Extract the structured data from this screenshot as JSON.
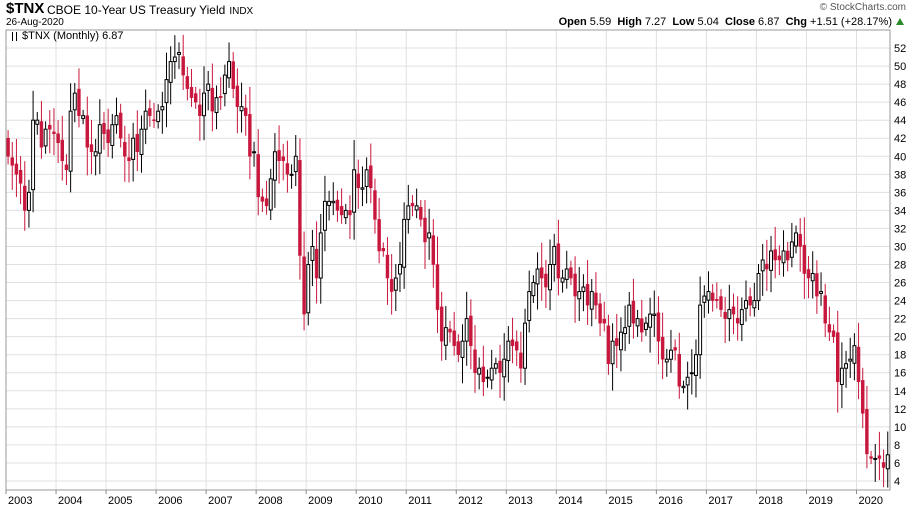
{
  "header": {
    "symbol": "$TNX",
    "name": "CBOE 10-Year US Treasury Yield",
    "exchange": "INDX",
    "date": "26-Aug-2020",
    "brand": "© StockCharts.com",
    "open_label": "Open",
    "open": "5.59",
    "high_label": "High",
    "high": "7.27",
    "low_label": "Low",
    "low": "5.04",
    "close_label": "Close",
    "close": "6.87",
    "chg_label": "Chg",
    "chg": "+1.51 (+28.17%)"
  },
  "legend": {
    "label": "$TNX (Monthly) 6.87"
  },
  "colors": {
    "up": "#000000",
    "down": "#c8173c",
    "grid": "#e0e0e0"
  },
  "chart_data": {
    "type": "candlestick",
    "ylim": [
      3,
      54
    ],
    "yticks": [
      4,
      6,
      8,
      10,
      12,
      14,
      16,
      18,
      20,
      22,
      24,
      26,
      28,
      30,
      32,
      34,
      36,
      38,
      40,
      42,
      44,
      46,
      48,
      50,
      52
    ],
    "x_start": 2003,
    "x_end": 2020.67,
    "xticks": [
      "2003",
      "2004",
      "2005",
      "2006",
      "2007",
      "2008",
      "2009",
      "2010",
      "2011",
      "2012",
      "2013",
      "2014",
      "2015",
      "2016",
      "2017",
      "2018",
      "2019",
      "2020"
    ],
    "grid": true,
    "monthly_close": [
      40.0,
      39.0,
      38.0,
      37.0,
      34.0,
      36.0,
      44.0,
      44.0,
      41.0,
      43.0,
      43.0,
      42.5,
      41.5,
      39.5,
      38.5,
      45.0,
      47.0,
      44.5,
      44.5,
      41.0,
      40.5,
      40.5,
      43.5,
      42.5,
      41.5,
      43.5,
      44.5,
      42.0,
      40.0,
      39.5,
      42.0,
      40.5,
      43.0,
      45.0,
      44.5,
      44.0,
      45.0,
      45.5,
      48.5,
      50.5,
      51.0,
      51.5,
      49.0,
      47.5,
      46.5,
      46.0,
      44.5,
      47.0,
      48.0,
      45.0,
      46.5,
      46.5,
      49.0,
      50.5,
      47.5,
      45.5,
      45.5,
      44.5,
      40.0,
      40.5,
      35.5,
      35.0,
      34.5,
      37.5,
      40.5,
      39.5,
      39.5,
      38.0,
      38.0,
      40.0,
      29.0,
      22.5,
      28.0,
      30.0,
      26.5,
      31.5,
      35.0,
      35.0,
      35.0,
      34.0,
      33.5,
      34.0,
      33.5,
      38.5,
      36.5,
      36.5,
      38.5,
      36.5,
      33.0,
      29.5,
      29.5,
      26.5,
      25.0,
      26.5,
      28.0,
      33.0,
      34.5,
      34.5,
      34.5,
      33.0,
      30.5,
      31.5,
      28.0,
      23.0,
      19.5,
      21.0,
      20.5,
      19.0,
      18.0,
      19.5,
      22.0,
      19.0,
      16.0,
      16.5,
      15.0,
      15.5,
      16.5,
      17.0,
      16.0,
      17.5,
      19.5,
      19.0,
      18.5,
      16.5,
      21.5,
      25.0,
      26.0,
      27.5,
      26.5,
      25.5,
      28.0,
      30.0,
      26.5,
      26.5,
      27.5,
      26.5,
      24.5,
      25.0,
      25.5,
      23.5,
      25.0,
      23.5,
      21.5,
      21.5,
      17.0,
      19.5,
      19.0,
      20.5,
      21.0,
      23.5,
      21.5,
      22.0,
      20.5,
      21.5,
      22.5,
      22.5,
      19.5,
      17.5,
      17.5,
      18.5,
      18.5,
      14.5,
      14.5,
      15.5,
      16.0,
      18.0,
      23.5,
      24.5,
      25.0,
      24.0,
      24.0,
      23.0,
      22.0,
      23.0,
      22.5,
      21.5,
      23.0,
      24.0,
      23.5,
      24.0,
      27.0,
      28.5,
      27.5,
      29.5,
      28.5,
      28.5,
      29.5,
      28.5,
      30.5,
      31.5,
      30.0,
      27.0,
      26.5,
      27.0,
      24.5,
      25.0,
      21.5,
      20.5,
      20.0,
      15.0,
      16.5,
      17.0,
      17.5,
      19.0,
      15.0,
      11.5,
      7.0,
      6.5,
      6.5,
      6.5,
      5.5,
      6.9
    ]
  }
}
